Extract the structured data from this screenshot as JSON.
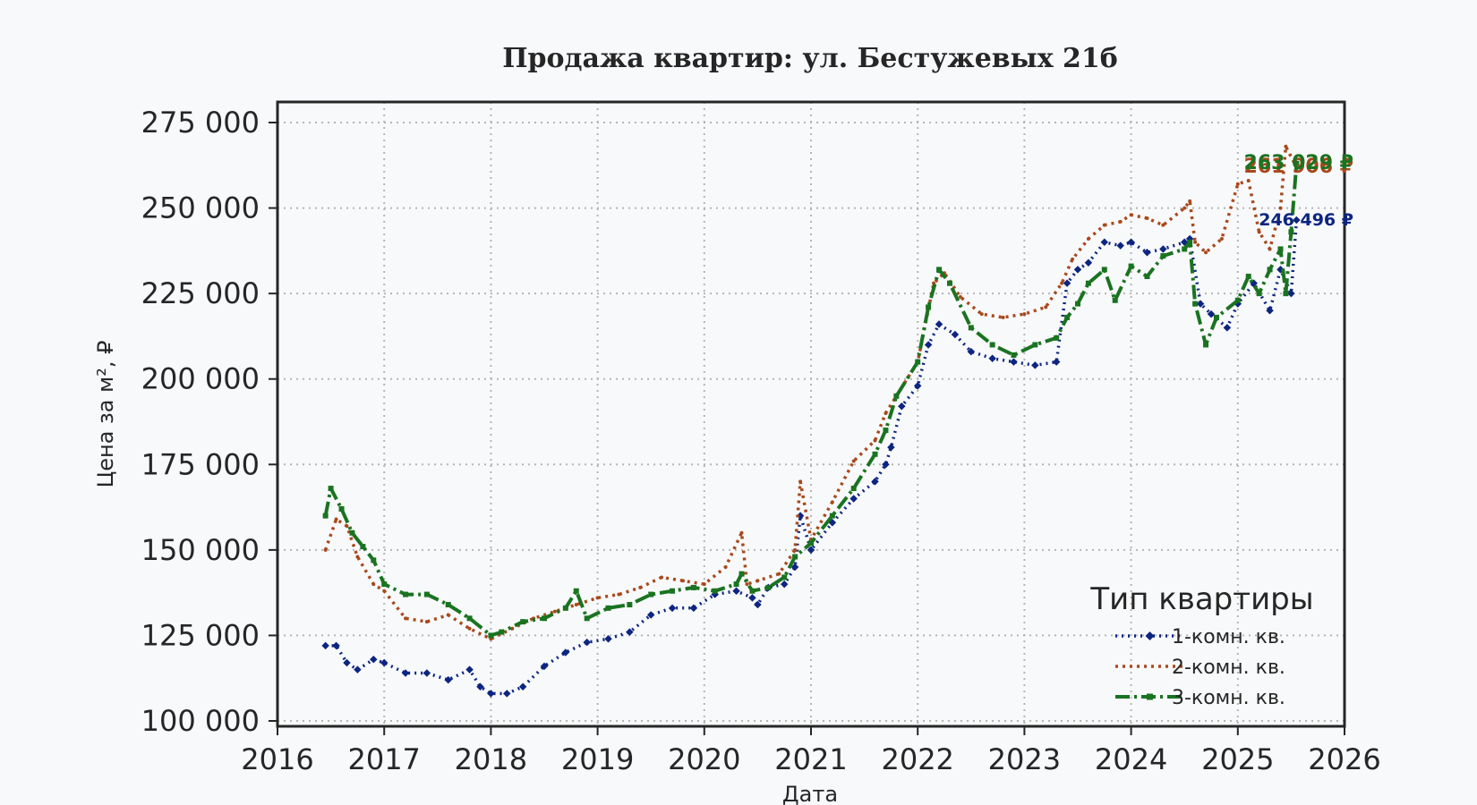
{
  "chart_data": {
    "type": "line",
    "title": "Продажа квартир: ул. Бестужевых 21б",
    "xlabel": "Дата",
    "ylabel": "Цена за м², ₽",
    "xlim": [
      2016,
      2026
    ],
    "ylim": [
      100000,
      275000
    ],
    "x_ticks": [
      2016,
      2017,
      2018,
      2019,
      2020,
      2021,
      2022,
      2023,
      2024,
      2025,
      2026
    ],
    "x_tick_labels": [
      "2016",
      "2017",
      "2018",
      "2019",
      "2020",
      "2021",
      "2022",
      "2023",
      "2024",
      "2025",
      "2026"
    ],
    "y_ticks": [
      100000,
      125000,
      150000,
      175000,
      200000,
      225000,
      250000,
      275000
    ],
    "y_tick_labels": [
      "100 000",
      "125 000",
      "150 000",
      "175 000",
      "200 000",
      "225 000",
      "250 000",
      "275 000"
    ],
    "grid": true,
    "legend": {
      "title": "Тип квартиры",
      "position": "lower-right"
    },
    "series": [
      {
        "name": "1-комн. кв.",
        "color": "#0d2580",
        "style": "dotted-diamond",
        "end_label": "246 496 ₽",
        "x": [
          2016.45,
          2016.55,
          2016.65,
          2016.75,
          2016.9,
          2017.0,
          2017.2,
          2017.4,
          2017.6,
          2017.8,
          2017.9,
          2018.0,
          2018.15,
          2018.3,
          2018.5,
          2018.7,
          2018.9,
          2019.1,
          2019.3,
          2019.5,
          2019.7,
          2019.9,
          2020.1,
          2020.3,
          2020.45,
          2020.5,
          2020.6,
          2020.75,
          2020.85,
          2020.9,
          2021.0,
          2021.2,
          2021.4,
          2021.6,
          2021.7,
          2021.75,
          2021.85,
          2022.0,
          2022.1,
          2022.2,
          2022.35,
          2022.5,
          2022.7,
          2022.9,
          2023.1,
          2023.3,
          2023.4,
          2023.5,
          2023.6,
          2023.75,
          2023.9,
          2024.0,
          2024.15,
          2024.3,
          2024.5,
          2024.55,
          2024.65,
          2024.75,
          2024.9,
          2025.0,
          2025.15,
          2025.3,
          2025.4,
          2025.5,
          2025.55
        ],
        "y": [
          122000,
          122000,
          117000,
          115000,
          118000,
          117000,
          114000,
          114000,
          112000,
          115000,
          110000,
          108000,
          108000,
          110000,
          116000,
          120000,
          123000,
          124000,
          126000,
          131000,
          133000,
          133000,
          137000,
          138000,
          136000,
          134000,
          139000,
          140000,
          145000,
          160000,
          150000,
          158000,
          165000,
          170000,
          175000,
          180000,
          192000,
          198000,
          210000,
          216000,
          213000,
          208000,
          206000,
          205000,
          204000,
          205000,
          228000,
          232000,
          234000,
          240000,
          239000,
          240000,
          237000,
          238000,
          240000,
          241000,
          222000,
          219000,
          215000,
          222000,
          228000,
          220000,
          232000,
          225000,
          246496
        ]
      },
      {
        "name": "2-комн. кв.",
        "color": "#a8491c",
        "style": "dotted",
        "end_label": "261 906 ₽",
        "x": [
          2016.45,
          2016.55,
          2016.65,
          2016.75,
          2016.9,
          2017.0,
          2017.2,
          2017.4,
          2017.6,
          2017.8,
          2018.0,
          2018.2,
          2018.4,
          2018.6,
          2018.8,
          2019.0,
          2019.2,
          2019.4,
          2019.6,
          2019.8,
          2020.0,
          2020.2,
          2020.35,
          2020.4,
          2020.5,
          2020.7,
          2020.85,
          2020.9,
          2021.0,
          2021.2,
          2021.4,
          2021.6,
          2021.7,
          2021.8,
          2022.0,
          2022.15,
          2022.25,
          2022.4,
          2022.6,
          2022.8,
          2023.0,
          2023.2,
          2023.35,
          2023.45,
          2023.6,
          2023.75,
          2023.9,
          2024.0,
          2024.15,
          2024.3,
          2024.5,
          2024.55,
          2024.6,
          2024.7,
          2024.85,
          2025.0,
          2025.1,
          2025.2,
          2025.3,
          2025.4,
          2025.45,
          2025.55
        ],
        "y": [
          150000,
          159000,
          157000,
          148000,
          140000,
          138000,
          130000,
          129000,
          131000,
          127000,
          124000,
          127000,
          130000,
          132000,
          134000,
          136000,
          137000,
          139000,
          142000,
          141000,
          140000,
          145000,
          155000,
          140000,
          141000,
          143000,
          150000,
          170000,
          153000,
          164000,
          176000,
          182000,
          190000,
          195000,
          205000,
          228000,
          231000,
          224000,
          219000,
          218000,
          219000,
          221000,
          228000,
          235000,
          241000,
          245000,
          246000,
          248000,
          247000,
          245000,
          250000,
          252000,
          240000,
          237000,
          241000,
          257000,
          258000,
          243000,
          238000,
          250000,
          268000,
          261906
        ]
      },
      {
        "name": "3-комн. кв.",
        "color": "#1a7320",
        "style": "dashdot-square",
        "end_label": "263 029 ₽",
        "x": [
          2016.45,
          2016.5,
          2016.6,
          2016.7,
          2016.8,
          2016.9,
          2017.0,
          2017.2,
          2017.4,
          2017.6,
          2017.8,
          2018.0,
          2018.1,
          2018.3,
          2018.5,
          2018.7,
          2018.8,
          2018.9,
          2019.1,
          2019.3,
          2019.5,
          2019.7,
          2019.9,
          2020.1,
          2020.3,
          2020.35,
          2020.45,
          2020.6,
          2020.75,
          2020.85,
          2021.0,
          2021.2,
          2021.4,
          2021.6,
          2021.7,
          2021.8,
          2022.0,
          2022.1,
          2022.2,
          2022.3,
          2022.5,
          2022.7,
          2022.9,
          2023.1,
          2023.3,
          2023.4,
          2023.5,
          2023.6,
          2023.75,
          2023.85,
          2024.0,
          2024.15,
          2024.3,
          2024.5,
          2024.55,
          2024.6,
          2024.7,
          2024.8,
          2025.0,
          2025.1,
          2025.2,
          2025.3,
          2025.4,
          2025.45,
          2025.5,
          2025.55
        ],
        "y": [
          160000,
          168000,
          162000,
          155000,
          151000,
          147000,
          140000,
          137000,
          137000,
          134000,
          130000,
          125000,
          126000,
          129000,
          130000,
          133000,
          138000,
          130000,
          133000,
          134000,
          137000,
          138000,
          139000,
          138000,
          140000,
          143000,
          138000,
          139000,
          142000,
          148000,
          152000,
          160000,
          168000,
          178000,
          185000,
          195000,
          205000,
          221000,
          232000,
          228000,
          215000,
          210000,
          207000,
          210000,
          212000,
          218000,
          222000,
          228000,
          232000,
          223000,
          233000,
          230000,
          236000,
          238000,
          240000,
          222000,
          210000,
          218000,
          223000,
          230000,
          225000,
          232000,
          238000,
          225000,
          243000,
          263029
        ]
      }
    ]
  }
}
